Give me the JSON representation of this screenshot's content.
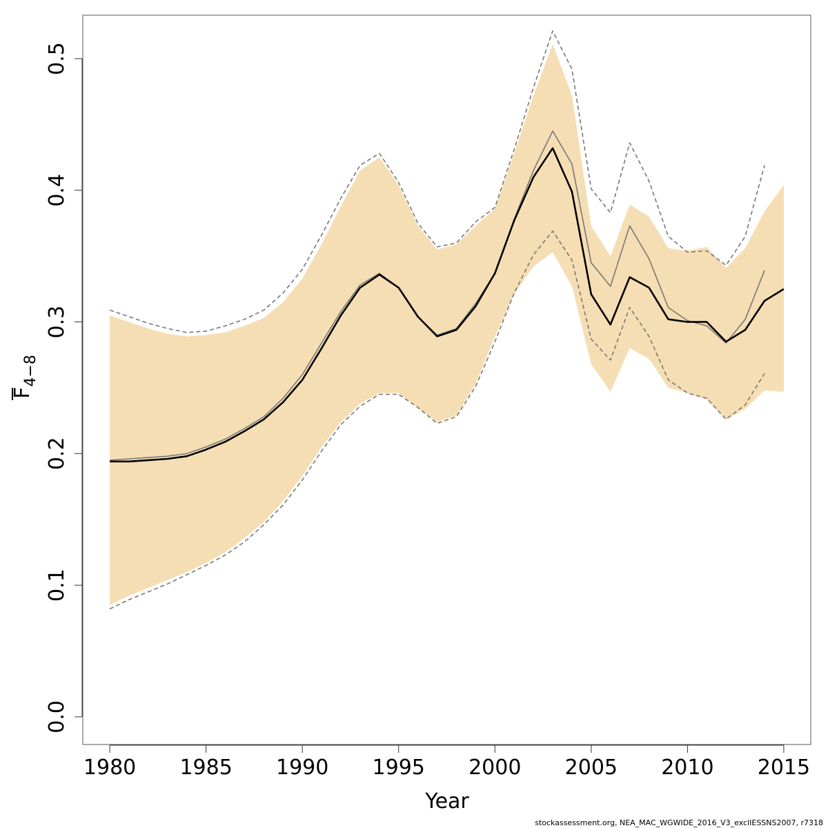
{
  "chart_data": {
    "type": "line",
    "title": "",
    "xlabel": "Year",
    "ylabel": {
      "main": "F",
      "subscript": "4−8"
    },
    "xlim": [
      1978.6,
      2016.4
    ],
    "ylim": [
      -0.021,
      0.533
    ],
    "x_ticks": [
      1980,
      1985,
      1990,
      1995,
      2000,
      2005,
      2010,
      2015
    ],
    "y_ticks": [
      0.0,
      0.1,
      0.2,
      0.3,
      0.4,
      0.5
    ],
    "y_tick_labels": [
      "0.0",
      "0.1",
      "0.2",
      "0.3",
      "0.4",
      "0.5"
    ],
    "x": [
      1980,
      1981,
      1982,
      1983,
      1984,
      1985,
      1986,
      1987,
      1988,
      1989,
      1990,
      1991,
      1992,
      1993,
      1994,
      1995,
      1996,
      1997,
      1998,
      1999,
      2000,
      2001,
      2002,
      2003,
      2004,
      2005,
      2006,
      2007,
      2008,
      2009,
      2010,
      2011,
      2012,
      2013,
      2014,
      2015
    ],
    "series": [
      {
        "name": "confidence band",
        "kind": "band",
        "color": "#f5deb3",
        "lower": [
          0.085,
          0.092,
          0.098,
          0.104,
          0.11,
          0.117,
          0.125,
          0.136,
          0.148,
          0.164,
          0.183,
          0.205,
          0.224,
          0.238,
          0.246,
          0.246,
          0.235,
          0.224,
          0.229,
          0.253,
          0.289,
          0.321,
          0.342,
          0.353,
          0.327,
          0.268,
          0.247,
          0.28,
          0.272,
          0.25,
          0.246,
          0.241,
          0.226,
          0.234,
          0.248,
          0.247
        ],
        "upper": [
          0.305,
          0.3,
          0.295,
          0.291,
          0.289,
          0.29,
          0.292,
          0.297,
          0.303,
          0.315,
          0.333,
          0.359,
          0.388,
          0.415,
          0.425,
          0.404,
          0.373,
          0.355,
          0.359,
          0.373,
          0.386,
          0.428,
          0.472,
          0.511,
          0.472,
          0.373,
          0.35,
          0.389,
          0.38,
          0.356,
          0.354,
          0.357,
          0.341,
          0.356,
          0.384,
          0.404
        ]
      },
      {
        "name": "estimate",
        "kind": "line",
        "color": "#000000",
        "values": [
          0.194,
          0.194,
          0.195,
          0.196,
          0.198,
          0.203,
          0.209,
          0.217,
          0.226,
          0.239,
          0.256,
          0.28,
          0.305,
          0.326,
          0.336,
          0.326,
          0.304,
          0.289,
          0.294,
          0.312,
          0.337,
          0.377,
          0.41,
          0.432,
          0.399,
          0.321,
          0.298,
          0.334,
          0.326,
          0.302,
          0.3,
          0.3,
          0.285,
          0.294,
          0.316,
          0.325
        ]
      },
      {
        "name": "previous assessment estimate",
        "kind": "line",
        "color": "#777777",
        "values": [
          0.195,
          0.196,
          0.197,
          0.198,
          0.2,
          0.205,
          0.211,
          0.219,
          0.228,
          0.242,
          0.26,
          0.284,
          0.308,
          0.328,
          0.337,
          0.326,
          0.304,
          0.29,
          0.295,
          0.314,
          0.337,
          0.378,
          0.415,
          0.445,
          0.42,
          0.345,
          0.327,
          0.373,
          0.348,
          0.311,
          0.301,
          0.297,
          0.284,
          0.302,
          0.339,
          null
        ]
      },
      {
        "name": "previous assessment upper bound",
        "kind": "dashed",
        "color": "#777777",
        "values": [
          0.309,
          0.304,
          0.299,
          0.295,
          0.292,
          0.293,
          0.297,
          0.302,
          0.309,
          0.322,
          0.34,
          0.366,
          0.394,
          0.419,
          0.428,
          0.406,
          0.375,
          0.357,
          0.36,
          0.376,
          0.387,
          0.431,
          0.478,
          0.521,
          0.492,
          0.401,
          0.383,
          0.436,
          0.407,
          0.365,
          0.353,
          0.354,
          0.343,
          0.365,
          0.419,
          null
        ]
      },
      {
        "name": "previous assessment lower bound",
        "kind": "dashed",
        "color": "#777777",
        "values": [
          0.082,
          0.089,
          0.095,
          0.101,
          0.108,
          0.115,
          0.123,
          0.133,
          0.146,
          0.161,
          0.18,
          0.202,
          0.222,
          0.236,
          0.245,
          0.245,
          0.235,
          0.223,
          0.228,
          0.251,
          0.285,
          0.322,
          0.351,
          0.369,
          0.347,
          0.287,
          0.271,
          0.311,
          0.289,
          0.256,
          0.246,
          0.242,
          0.226,
          0.237,
          0.261,
          null
        ]
      }
    ]
  },
  "footer_text": "stockassessment.org, NEA_MAC_WGWIDE_2016_V3_exclIESSNS2007, r7318"
}
